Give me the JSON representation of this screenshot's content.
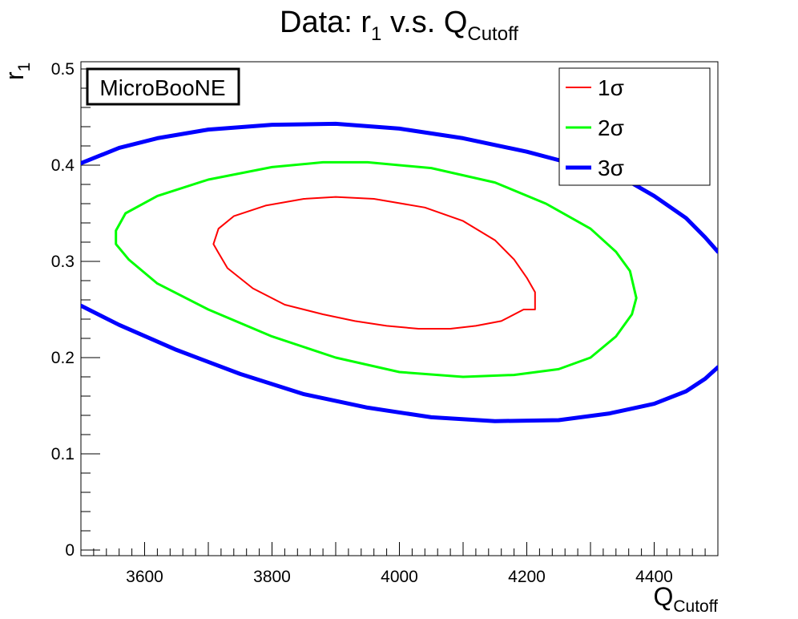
{
  "title": {
    "prefix": "Data: r",
    "sub1": "1",
    "middle": " v.s. Q",
    "sub2": "Cutoff"
  },
  "axes": {
    "xlabel": {
      "main": "Q",
      "sub": "Cutoff"
    },
    "ylabel": {
      "main": "r",
      "sub": "1"
    }
  },
  "watermark": "MicroBooNE",
  "colors": {
    "sigma1": "#ff0000",
    "sigma2": "#00ff00",
    "sigma3": "#0000ff"
  },
  "chart_data": {
    "type": "line",
    "title": "Data: r1 v.s. QCutoff",
    "xlabel": "QCutoff",
    "ylabel": "r1",
    "xlim": [
      3500,
      4500
    ],
    "ylim": [
      0,
      0.5
    ],
    "xticks": [
      3600,
      3800,
      4000,
      4200,
      4400
    ],
    "yticks": [
      0,
      0.1,
      0.2,
      0.3,
      0.4,
      0.5
    ],
    "xtick_labels": [
      "3600",
      "3800",
      "4000",
      "4200",
      "4400"
    ],
    "ytick_labels": [
      "0",
      "0.1",
      "0.2",
      "0.3",
      "0.4",
      "0.5"
    ],
    "grid": false,
    "legend": "top-right",
    "series": [
      {
        "name": "1σ",
        "key": "sigma1",
        "closed": true,
        "points": [
          [
            3900,
            0.367
          ],
          [
            3960,
            0.365
          ],
          [
            4040,
            0.356
          ],
          [
            4100,
            0.342
          ],
          [
            4150,
            0.322
          ],
          [
            4180,
            0.302
          ],
          [
            4200,
            0.283
          ],
          [
            4213,
            0.268
          ],
          [
            4213,
            0.25
          ],
          [
            4195,
            0.25
          ],
          [
            4160,
            0.238
          ],
          [
            4120,
            0.233
          ],
          [
            4080,
            0.23
          ],
          [
            4030,
            0.23
          ],
          [
            3980,
            0.233
          ],
          [
            3930,
            0.238
          ],
          [
            3880,
            0.245
          ],
          [
            3820,
            0.255
          ],
          [
            3770,
            0.272
          ],
          [
            3730,
            0.293
          ],
          [
            3715,
            0.31
          ],
          [
            3708,
            0.318
          ],
          [
            3716,
            0.334
          ],
          [
            3740,
            0.347
          ],
          [
            3790,
            0.358
          ],
          [
            3850,
            0.365
          ]
        ]
      },
      {
        "name": "2σ",
        "key": "sigma2",
        "closed": true,
        "points": [
          [
            3880,
            0.403
          ],
          [
            3950,
            0.403
          ],
          [
            4050,
            0.397
          ],
          [
            4150,
            0.382
          ],
          [
            4230,
            0.36
          ],
          [
            4300,
            0.334
          ],
          [
            4340,
            0.31
          ],
          [
            4362,
            0.29
          ],
          [
            4372,
            0.262
          ],
          [
            4365,
            0.245
          ],
          [
            4340,
            0.222
          ],
          [
            4300,
            0.2
          ],
          [
            4250,
            0.188
          ],
          [
            4180,
            0.182
          ],
          [
            4100,
            0.18
          ],
          [
            4000,
            0.185
          ],
          [
            3900,
            0.2
          ],
          [
            3800,
            0.222
          ],
          [
            3700,
            0.25
          ],
          [
            3620,
            0.277
          ],
          [
            3575,
            0.302
          ],
          [
            3555,
            0.318
          ],
          [
            3555,
            0.332
          ],
          [
            3570,
            0.35
          ],
          [
            3620,
            0.368
          ],
          [
            3700,
            0.385
          ],
          [
            3800,
            0.398
          ]
        ]
      },
      {
        "name": "3σ",
        "key": "sigma3",
        "closed": false,
        "segments": [
          [
            [
              3500,
              0.402
            ],
            [
              3560,
              0.418
            ],
            [
              3620,
              0.428
            ],
            [
              3700,
              0.437
            ],
            [
              3800,
              0.442
            ],
            [
              3900,
              0.443
            ],
            [
              4000,
              0.438
            ],
            [
              4100,
              0.428
            ],
            [
              4200,
              0.414
            ],
            [
              4280,
              0.4
            ],
            [
              4350,
              0.387
            ],
            [
              4400,
              0.368
            ],
            [
              4450,
              0.345
            ],
            [
              4480,
              0.325
            ],
            [
              4500,
              0.31
            ]
          ],
          [
            [
              3500,
              0.254
            ],
            [
              3560,
              0.234
            ],
            [
              3650,
              0.208
            ],
            [
              3750,
              0.183
            ],
            [
              3850,
              0.162
            ],
            [
              3950,
              0.148
            ],
            [
              4050,
              0.138
            ],
            [
              4150,
              0.134
            ],
            [
              4250,
              0.135
            ],
            [
              4330,
              0.142
            ],
            [
              4400,
              0.152
            ],
            [
              4450,
              0.165
            ],
            [
              4480,
              0.178
            ],
            [
              4500,
              0.19
            ]
          ]
        ]
      }
    ]
  }
}
